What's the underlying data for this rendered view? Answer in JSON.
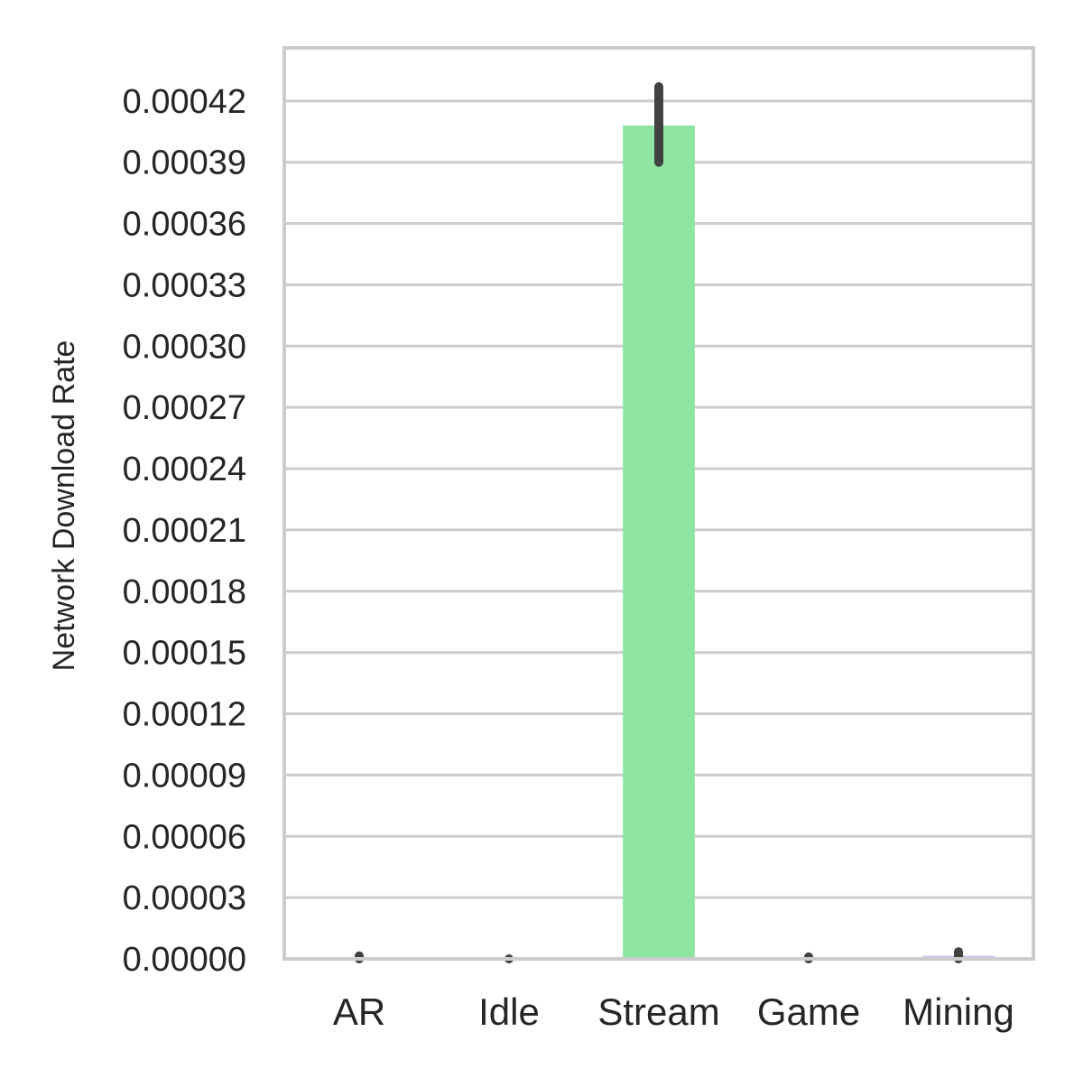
{
  "chart_data": {
    "type": "bar",
    "title": "",
    "xlabel": "",
    "ylabel": "Network Download Rate",
    "categories": [
      "AR",
      "Idle",
      "Stream",
      "Game",
      "Mining"
    ],
    "values": [
      0.0,
      0.0,
      0.000408,
      0.0,
      1.5e-06
    ],
    "error_bars": [
      [
        0.0,
        1.5e-06
      ],
      [
        0.0,
        0.0
      ],
      [
        0.00039,
        0.000427
      ],
      [
        0.0,
        1e-06
      ],
      [
        0.0,
        3.5e-06
      ]
    ],
    "bar_colors": [
      "#a1c9f4",
      "#ffb482",
      "#8de5a1",
      "#ff9f9b",
      "#d0bbff"
    ],
    "error_color": "#424242",
    "ylim": [
      0,
      0.000446
    ],
    "yticks": [
      "0.00000",
      "0.00003",
      "0.00006",
      "0.00009",
      "0.00012",
      "0.00015",
      "0.00018",
      "0.00021",
      "0.00024",
      "0.00027",
      "0.00030",
      "0.00033",
      "0.00036",
      "0.00039",
      "0.00042"
    ],
    "grid": true,
    "grid_axis": "y",
    "grid_color": "#cccccc",
    "spine_color": "#cccccc",
    "legend": "none"
  }
}
